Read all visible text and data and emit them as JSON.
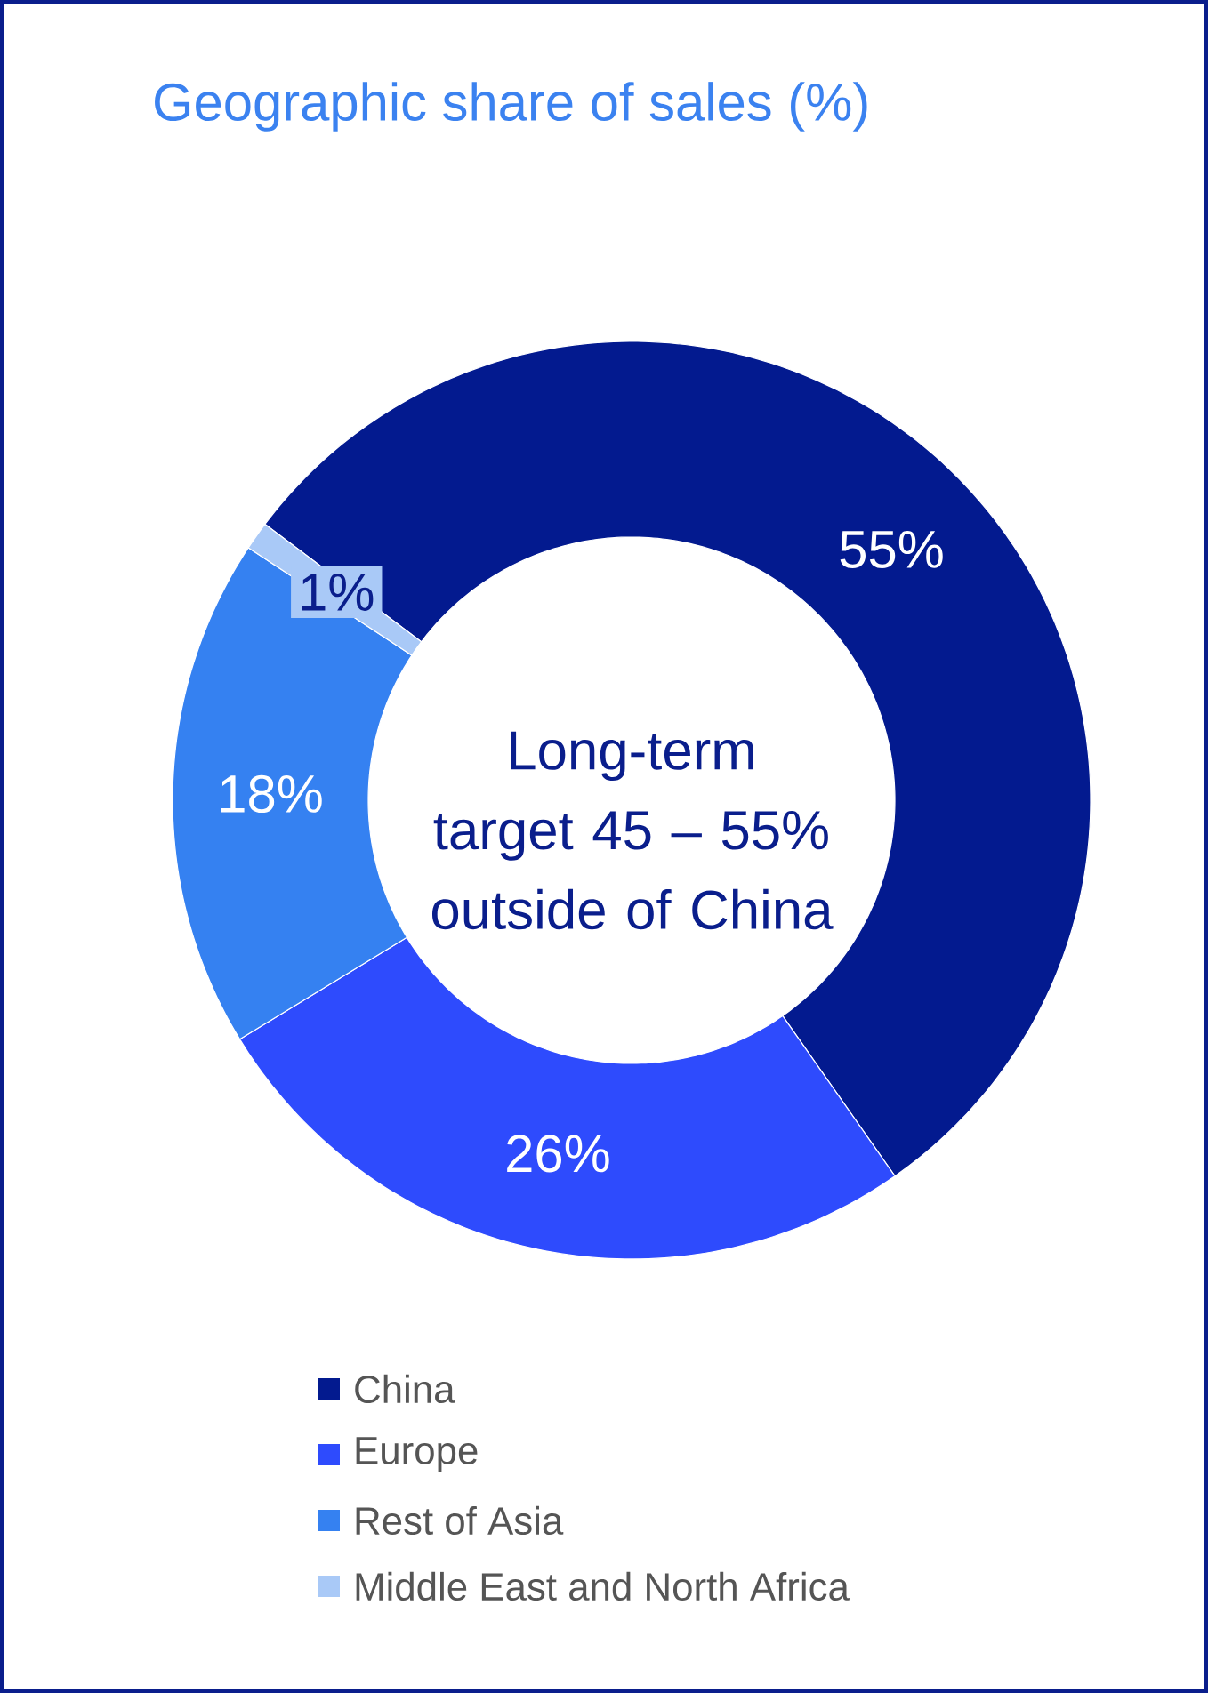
{
  "chart_data": {
    "type": "donut",
    "title": "Geographic share of sales (%)",
    "categories": [
      "China",
      "Europe",
      "Rest of Asia",
      "Middle East and North Africa"
    ],
    "values": [
      55,
      26,
      18,
      1
    ],
    "colors": [
      "#031a8f",
      "#2e4bfd",
      "#3581f1",
      "#a9c9f7"
    ],
    "value_labels": [
      "55%",
      "26%",
      "18%",
      "1%"
    ],
    "annotations": [
      "Long-term target 45 – 55% outside of China"
    ],
    "legend": "bottom"
  }
}
